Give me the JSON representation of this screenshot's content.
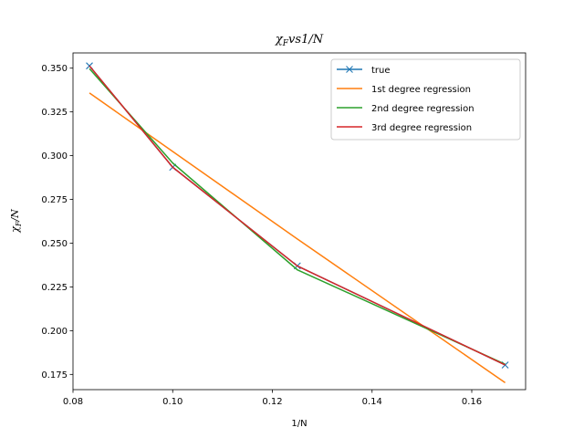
{
  "chart_data": {
    "type": "line",
    "title": "χ_F vs 1/N",
    "xlabel": "1/N",
    "ylabel": "χ_F/N",
    "xlim": [
      0.08,
      0.1708
    ],
    "ylim": [
      0.1663,
      0.3587
    ],
    "xticks": [
      0.08,
      0.1,
      0.12,
      0.14,
      0.16
    ],
    "xtick_labels": [
      "0.08",
      "0.10",
      "0.12",
      "0.14",
      "0.16"
    ],
    "yticks": [
      0.175,
      0.2,
      0.225,
      0.25,
      0.275,
      0.3,
      0.325,
      0.35
    ],
    "ytick_labels": [
      "0.175",
      "0.200",
      "0.225",
      "0.250",
      "0.275",
      "0.300",
      "0.325",
      "0.350"
    ],
    "grid": false,
    "legend_position": "top-right",
    "series": [
      {
        "name": "true",
        "color": "#1f77b4",
        "marker": "x",
        "x": [
          0.0833,
          0.1,
          0.125,
          0.1667
        ],
        "y": [
          0.3513,
          0.2934,
          0.237,
          0.1804
        ]
      },
      {
        "name": "1st degree regression",
        "color": "#ff7f0e",
        "marker": "none",
        "x": [
          0.0833,
          0.1,
          0.125,
          0.1667
        ],
        "y": [
          0.3358,
          0.3024,
          0.2524,
          0.1703
        ]
      },
      {
        "name": "2nd degree regression",
        "color": "#2ca02c",
        "marker": "none",
        "x": [
          0.0833,
          0.1,
          0.125,
          0.1667
        ],
        "y": [
          0.3497,
          0.2958,
          0.2348,
          0.1808
        ]
      },
      {
        "name": "3rd degree regression",
        "color": "#d62728",
        "marker": "none",
        "x": [
          0.0833,
          0.1,
          0.125,
          0.1667
        ],
        "y": [
          0.3513,
          0.2934,
          0.237,
          0.1804
        ]
      }
    ]
  }
}
